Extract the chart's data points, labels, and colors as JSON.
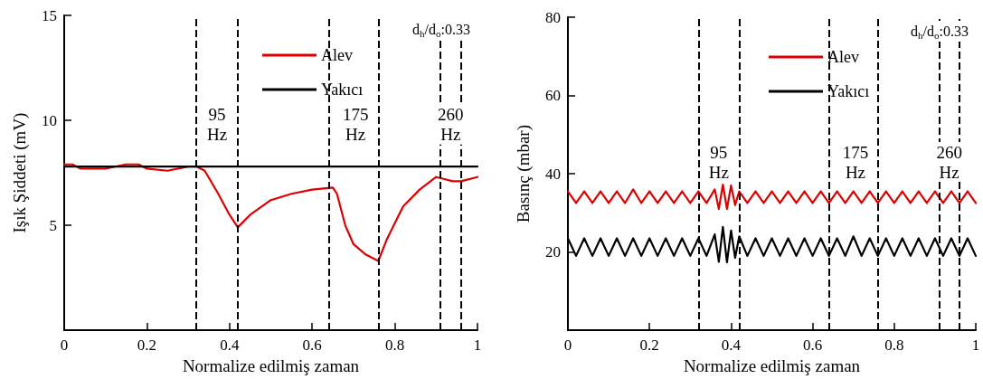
{
  "chart_data": [
    {
      "type": "line",
      "xlabel": "Normalize edilmiş zaman",
      "ylabel": "Işık Şiddeti (mV)",
      "xlim": [
        0,
        1
      ],
      "ylim": [
        0,
        15
      ],
      "xticks": [
        0,
        0.2,
        0.4,
        0.6,
        0.8,
        1
      ],
      "yticks": [
        5,
        10,
        15
      ],
      "legend": "top right",
      "marker": "none",
      "line_style": "solid",
      "grid": false,
      "series": [
        {
          "name": "Alev",
          "color": "#dd0000",
          "x": [
            0,
            0.02,
            0.04,
            0.1,
            0.15,
            0.18,
            0.2,
            0.25,
            0.3,
            0.32,
            0.34,
            0.37,
            0.4,
            0.42,
            0.45,
            0.5,
            0.55,
            0.6,
            0.65,
            0.66,
            0.68,
            0.7,
            0.73,
            0.76,
            0.78,
            0.82,
            0.86,
            0.9,
            0.92,
            0.94,
            0.96,
            1
          ],
          "values": [
            7.9,
            7.9,
            7.7,
            7.7,
            7.9,
            7.9,
            7.7,
            7.6,
            7.8,
            7.8,
            7.6,
            6.6,
            5.5,
            4.9,
            5.5,
            6.2,
            6.5,
            6.7,
            6.8,
            6.5,
            5.0,
            4.1,
            3.6,
            3.3,
            4.3,
            5.9,
            6.7,
            7.3,
            7.2,
            7.1,
            7.1,
            7.3
          ]
        },
        {
          "name": "Yakıcı",
          "color": "#000000",
          "x": [
            0,
            1
          ],
          "values": [
            7.8,
            7.8
          ]
        }
      ],
      "ref_lines": [
        {
          "axis": "x",
          "value": 0.32,
          "line_style": "dashed",
          "color": "#000000"
        },
        {
          "axis": "x",
          "value": 0.42,
          "line_style": "dashed",
          "color": "#000000"
        },
        {
          "axis": "x",
          "value": 0.64,
          "line_style": "dashed",
          "color": "#000000"
        },
        {
          "axis": "x",
          "value": 0.76,
          "line_style": "dashed",
          "color": "#000000"
        },
        {
          "axis": "x",
          "value": 0.91,
          "line_style": "dashed",
          "color": "#000000"
        },
        {
          "axis": "x",
          "value": 0.96,
          "line_style": "dashed",
          "color": "#000000"
        }
      ],
      "annotations": [
        "d$_{h}$/d$_{o}$:0.33",
        {
          "text": "95\nHz",
          "x": 0.37,
          "y": 9.8
        },
        {
          "text": "175\nHz",
          "x": 0.705,
          "y": 9.8
        },
        {
          "text": "260\nHz",
          "x": 0.935,
          "y": 9.8
        }
      ]
    },
    {
      "type": "line",
      "xlabel": "Normalize edilmiş zaman",
      "ylabel": "Basınç (mbar)",
      "xlim": [
        0,
        1
      ],
      "ylim": [
        0,
        80
      ],
      "xticks": [
        0,
        0.2,
        0.4,
        0.6,
        0.8,
        1
      ],
      "yticks": [
        20,
        40,
        60,
        80
      ],
      "legend": "top right",
      "marker": "none",
      "line_style": "solid",
      "grid": false,
      "series": [
        {
          "name": "Alev",
          "color": "#dd0000",
          "x": [
            0,
            0.02,
            0.04,
            0.06,
            0.08,
            0.1,
            0.12,
            0.14,
            0.16,
            0.18,
            0.2,
            0.22,
            0.24,
            0.26,
            0.28,
            0.3,
            0.32,
            0.34,
            0.36,
            0.37,
            0.38,
            0.39,
            0.4,
            0.41,
            0.42,
            0.44,
            0.46,
            0.48,
            0.5,
            0.52,
            0.54,
            0.56,
            0.58,
            0.6,
            0.62,
            0.64,
            0.66,
            0.68,
            0.7,
            0.72,
            0.74,
            0.76,
            0.78,
            0.8,
            0.82,
            0.84,
            0.86,
            0.88,
            0.9,
            0.92,
            0.94,
            0.96,
            0.98,
            1
          ],
          "values": [
            35.5,
            32.5,
            35.5,
            32.5,
            35.5,
            32.5,
            35.5,
            32.5,
            36,
            32.5,
            35.5,
            32.5,
            35.5,
            32.5,
            35.5,
            32.5,
            35.5,
            32.5,
            36,
            31,
            37.2,
            31,
            37,
            32,
            35.5,
            32.5,
            35.5,
            32.5,
            35.5,
            32.5,
            35.5,
            32.5,
            35.5,
            32.5,
            35.5,
            32.5,
            35.5,
            32.5,
            35.5,
            32.5,
            35.5,
            32.5,
            35.5,
            32.5,
            35.5,
            32.5,
            35.5,
            32.5,
            35.5,
            32.5,
            35.5,
            32.5,
            35.5,
            32.5
          ]
        },
        {
          "name": "Yakıcı",
          "color": "#000000",
          "x": [
            0,
            0.02,
            0.04,
            0.06,
            0.08,
            0.1,
            0.12,
            0.14,
            0.16,
            0.18,
            0.2,
            0.22,
            0.24,
            0.26,
            0.28,
            0.3,
            0.32,
            0.34,
            0.36,
            0.37,
            0.38,
            0.39,
            0.4,
            0.41,
            0.42,
            0.44,
            0.46,
            0.48,
            0.5,
            0.52,
            0.54,
            0.56,
            0.58,
            0.6,
            0.62,
            0.64,
            0.66,
            0.68,
            0.7,
            0.72,
            0.74,
            0.76,
            0.78,
            0.8,
            0.82,
            0.84,
            0.86,
            0.88,
            0.9,
            0.92,
            0.94,
            0.96,
            0.98,
            1
          ],
          "values": [
            23.5,
            19,
            23.5,
            19,
            23.5,
            19,
            23.5,
            19,
            23.5,
            19,
            23.5,
            19,
            23.5,
            19,
            23.5,
            19,
            23.5,
            19,
            24.5,
            17.5,
            26.4,
            17.4,
            25.5,
            18.5,
            24,
            19,
            23.5,
            19,
            23.5,
            19,
            23.5,
            19,
            23.5,
            19,
            23.5,
            19,
            23.5,
            19,
            24,
            19,
            23.5,
            19,
            23.5,
            19,
            23.5,
            19,
            23.5,
            19,
            23.5,
            19,
            23.5,
            19,
            23.5,
            19
          ]
        }
      ],
      "ref_lines": [
        {
          "axis": "x",
          "value": 0.32,
          "line_style": "dashed",
          "color": "#000000"
        },
        {
          "axis": "x",
          "value": 0.42,
          "line_style": "dashed",
          "color": "#000000"
        },
        {
          "axis": "x",
          "value": 0.64,
          "line_style": "dashed",
          "color": "#000000"
        },
        {
          "axis": "x",
          "value": 0.76,
          "line_style": "dashed",
          "color": "#000000"
        },
        {
          "axis": "x",
          "value": 0.91,
          "line_style": "dashed",
          "color": "#000000"
        },
        {
          "axis": "x",
          "value": 0.96,
          "line_style": "dashed",
          "color": "#000000"
        }
      ],
      "annotations": [
        "d$_{h}$/d$_{o}$:0.33",
        {
          "text": "95\nHz",
          "x": 0.37,
          "y": 43
        },
        {
          "text": "175\nHz",
          "x": 0.705,
          "y": 43
        },
        {
          "text": "260\nHz",
          "x": 0.935,
          "y": 43
        }
      ]
    }
  ]
}
